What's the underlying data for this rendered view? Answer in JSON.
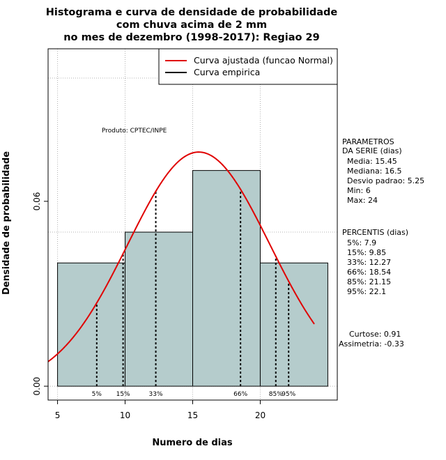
{
  "chart_data": {
    "type": "histogram",
    "title_lines": [
      "Histograma e curva de densidade de probabilidade",
      "com chuva acima de 2 mm",
      "no mes de dezembro (1998-2017): Regiao 29"
    ],
    "xlabel": "Numero de dias",
    "ylabel": "Densidade de probabilidade",
    "xlim": [
      4.3,
      25.7
    ],
    "ylim": [
      -0.0045,
      0.1095
    ],
    "x_ticks": [
      5,
      10,
      15,
      20
    ],
    "y_ticks": [
      0.0,
      0.06
    ],
    "y_tick_labels": [
      "0.00",
      "0.06"
    ],
    "grid": true,
    "bars": [
      {
        "start": 5,
        "end": 10,
        "density": 0.04
      },
      {
        "start": 10,
        "end": 15,
        "density": 0.05
      },
      {
        "start": 15,
        "end": 20,
        "density": 0.07
      },
      {
        "start": 20,
        "end": 25,
        "density": 0.04
      }
    ],
    "bar_color": "#b5cccc",
    "fitted_curve": {
      "name": "Curva ajustada (funcao Normal)",
      "distribution": "normal",
      "mean": 15.45,
      "sd": 5.25,
      "x_range": [
        4.3,
        24
      ],
      "color": "#e00000"
    },
    "empirical_curve": {
      "name": "Curva empirica",
      "color": "#000000"
    },
    "percentiles": [
      {
        "label": "5%",
        "x": 7.9
      },
      {
        "label": "15%",
        "x": 9.85
      },
      {
        "label": "33%",
        "x": 12.27
      },
      {
        "label": "66%",
        "x": 18.54
      },
      {
        "label": "85%",
        "x": 21.15
      },
      {
        "label": "95%",
        "x": 22.1
      }
    ],
    "legend": {
      "position": "top-right",
      "entries": [
        "Curva ajustada (funcao Normal)",
        "Curva empirica"
      ]
    },
    "annotation": "Produto: CPTEC/INPE",
    "parameters": {
      "heading": [
        "PARAMETROS",
        "DA SERIE (dias)"
      ],
      "lines": [
        "Media: 15.45",
        "Mediana: 16.5",
        "Desvio padrao: 5.25",
        "Min: 6",
        "Max: 24"
      ]
    },
    "percentis_block": {
      "heading": "PERCENTIS (dias)",
      "lines": [
        "5%: 7.9",
        "15%: 9.85",
        "33%: 12.27",
        "66%: 18.54",
        "85%: 21.15",
        "95%: 22.1"
      ]
    },
    "shape": {
      "lines": [
        "Curtose: 0.91",
        "Assimetria: -0.33"
      ]
    }
  }
}
